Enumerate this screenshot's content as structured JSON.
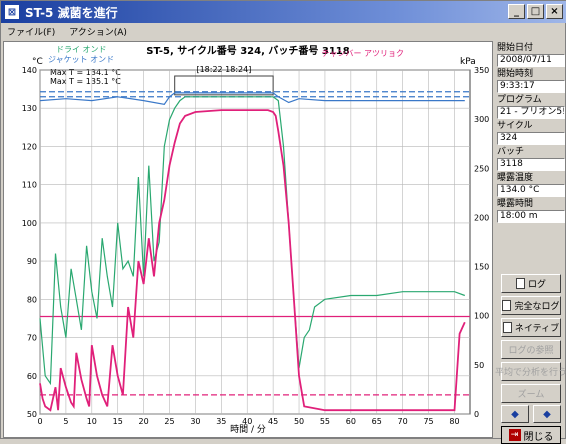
{
  "window": {
    "title": "ST-5 滅菌を進行",
    "icon": "sterilizer-icon",
    "buttons": [
      "_",
      "□",
      "×"
    ]
  },
  "menu": {
    "items": [
      "ファイル(F)",
      "アクション(A)"
    ]
  },
  "chart": {
    "title": "ST-5, サイクル番号 324, バッチ番号 3118",
    "legend_left_1": "ドライ オンド",
    "legend_left_2": "ジャケット オンド",
    "legend_right": "チャンバー アツリョク",
    "left_unit": "°C",
    "right_unit": "kPa",
    "max_label_1": "Max T = 134.1 °C",
    "max_label_2": "Max T = 135.1 °C",
    "sterile_box_label": "[18:22 18:24]",
    "xlabel": "時間 / 分",
    "colors": {
      "dry": "#2aa870",
      "jacket": "#3a78c8",
      "pressure": "#e0207a",
      "grid": "#b8b8b8"
    }
  },
  "chart_data": {
    "type": "line",
    "x_ticks": [
      0,
      5,
      10,
      15,
      20,
      25,
      30,
      35,
      40,
      45,
      50,
      55,
      60,
      65,
      70,
      75,
      80
    ],
    "y_left_ticks": [
      50,
      60,
      70,
      80,
      90,
      100,
      110,
      120,
      130,
      140
    ],
    "y_right_ticks": [
      0,
      50,
      100,
      150,
      200,
      250,
      300,
      350
    ],
    "xlim": [
      0,
      83
    ],
    "ylim_left": [
      50,
      140
    ],
    "ylim_right": [
      0,
      350
    ],
    "reference_lines": [
      {
        "name": "upper temp limit",
        "axis": "left",
        "value": 133
      },
      {
        "name": "lower temp limit",
        "axis": "left",
        "value": 134.3
      },
      {
        "name": "pressure limit high",
        "axis": "left",
        "value": 75.5
      },
      {
        "name": "pressure limit low",
        "axis": "left",
        "value": 55
      }
    ],
    "series": [
      {
        "axis": "left",
        "x": [
          0,
          1,
          2,
          3,
          4,
          5,
          6,
          7,
          8,
          9,
          10,
          11,
          12,
          13,
          14,
          15,
          16,
          17,
          18,
          19,
          20,
          21,
          22,
          23,
          24,
          25,
          26,
          27,
          28,
          30,
          35,
          40,
          44,
          45,
          46,
          47,
          48,
          49,
          50,
          51,
          52,
          53,
          55,
          60,
          65,
          70,
          75,
          80,
          82
        ],
        "y": [
          75,
          60,
          58,
          92,
          78,
          70,
          88,
          80,
          72,
          94,
          82,
          75,
          96,
          86,
          78,
          100,
          88,
          90,
          86,
          112,
          86,
          115,
          90,
          95,
          120,
          127,
          130,
          132,
          133,
          133,
          133,
          133,
          133,
          133,
          132,
          120,
          100,
          80,
          62,
          70,
          72,
          78,
          80,
          81,
          81,
          82,
          82,
          82,
          81
        ]
      },
      {
        "axis": "left",
        "x": [
          0,
          5,
          10,
          15,
          20,
          24,
          25,
          26,
          28,
          45,
          46,
          48,
          50,
          55,
          60,
          70,
          80,
          82
        ],
        "y": [
          132,
          132.5,
          132,
          133,
          132,
          131,
          133,
          134,
          134,
          134,
          133,
          131.5,
          132.5,
          132,
          132,
          132,
          132,
          132
        ]
      },
      {
        "axis": "left",
        "x": [
          0,
          0.5,
          1,
          2,
          3,
          3.5,
          4,
          5,
          6,
          6.5,
          7,
          8,
          9,
          9.5,
          10,
          11,
          12,
          13,
          14,
          15,
          16,
          17,
          18,
          19,
          20,
          21,
          22,
          23,
          24,
          25,
          26,
          27,
          28,
          30,
          35,
          40,
          44,
          45,
          45.5,
          46,
          47,
          48,
          49,
          50,
          51,
          55,
          60,
          70,
          78,
          80,
          81,
          82
        ],
        "y": [
          58,
          54,
          52,
          51,
          57,
          51,
          62,
          57,
          53,
          52,
          66,
          59,
          54,
          52,
          68,
          60,
          55,
          52,
          68,
          60,
          55,
          78,
          70,
          90,
          84,
          96,
          86,
          100,
          106,
          115,
          121,
          126,
          128,
          129,
          129.5,
          129.5,
          129.5,
          129,
          128,
          124,
          115,
          100,
          80,
          60,
          52,
          51,
          51,
          51,
          51,
          51,
          71,
          74
        ]
      }
    ]
  },
  "info": {
    "start_date_label": "開始日付",
    "start_date": "2008/07/11",
    "start_time_label": "開始時刻",
    "start_time": "9:33:17",
    "program_label": "プログラム",
    "program": "21 - プリオン5!",
    "cycle_label": "サイクル",
    "cycle": "324",
    "batch_label": "バッチ",
    "batch": "3118",
    "exposure_temp_label": "曝露温度",
    "exposure_temp": "134.0 °C",
    "exposure_time_label": "曝露時間",
    "exposure_time": "18:00 m"
  },
  "buttons": {
    "log": "ログ",
    "full_log": "完全なログ",
    "native": "ネイティブ",
    "disabled_1": "ログの参照",
    "disabled_2": "平均で分析を行う",
    "disabled_3": "ズーム",
    "prev_icon": "left-arrow-icon",
    "next_icon": "right-arrow-icon",
    "close": "閉じる"
  }
}
